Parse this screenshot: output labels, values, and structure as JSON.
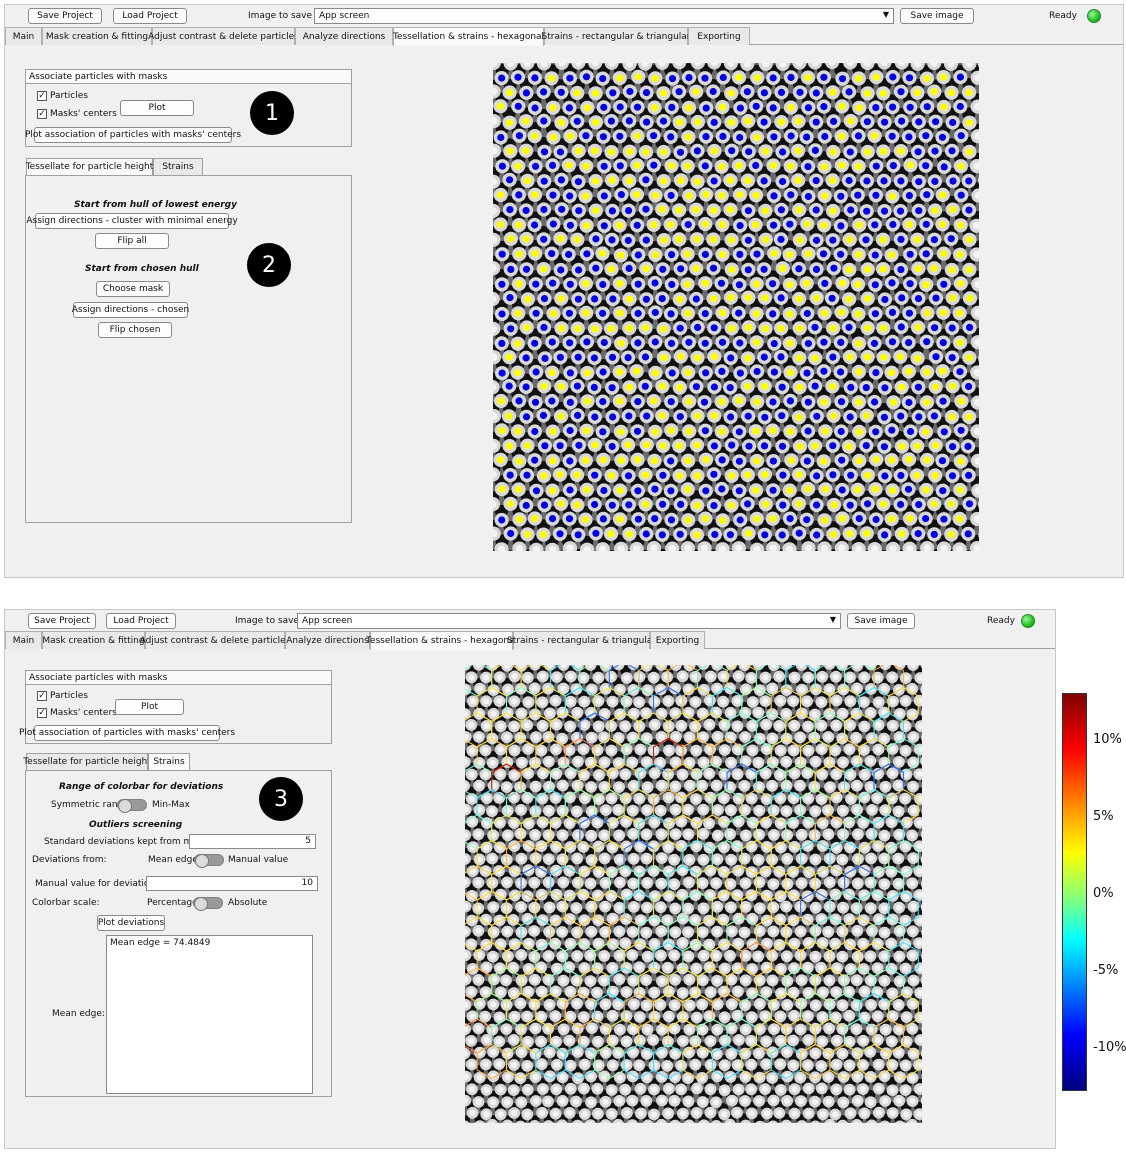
{
  "top": {
    "save_project": "Save Project",
    "load_project": "Load Project",
    "image_to_save_label": "Image to save",
    "image_to_save_value": "App screen",
    "save_image": "Save image",
    "status": "Ready",
    "tabs": [
      "Main",
      "Mask creation & fitting",
      "Adjust contrast & delete particles",
      "Analyze directions",
      "Tessellation & strains - hexagonal",
      "Strains - rectangular & triangular",
      "Exporting"
    ],
    "active_tab": "Tessellation & strains - hexagonal",
    "associate": {
      "title": "Associate particles with masks",
      "particles": "Particles",
      "masks_centers": "Masks' centers",
      "plot": "Plot",
      "plot_association": "Plot association of particles with masks' centers"
    },
    "subtabs": [
      "Tessellate for particle height",
      "Strains"
    ],
    "active_subtab": "Tessellate for particle height",
    "hull_lowest_heading": "Start from hull of lowest energy",
    "assign_min_energy": "Assign directions - cluster with minimal energy",
    "flip_all": "Flip all",
    "chosen_hull_heading": "Start from chosen hull",
    "choose_mask": "Choose mask",
    "assign_chosen": "Assign directions - chosen",
    "flip_chosen": "Flip chosen",
    "badge1": "1",
    "badge2": "2"
  },
  "bottom": {
    "save_project": "Save Project",
    "load_project": "Load Project",
    "image_to_save_label": "Image to save",
    "image_to_save_value": "App screen",
    "save_image": "Save image",
    "status": "Ready",
    "tabs": [
      "Main",
      "Mask creation & fitting",
      "Adjust contrast & delete particles",
      "Analyze directions",
      "Tessellation & strains - hexagonal",
      "Strains - rectangular & triangular",
      "Exporting"
    ],
    "active_tab": "Tessellation & strains - hexagonal",
    "associate": {
      "title": "Associate particles with masks",
      "particles": "Particles",
      "masks_centers": "Masks' centers",
      "plot": "Plot",
      "plot_association": "Plot association of particles with masks' centers"
    },
    "subtabs": [
      "Tessellate for particle height",
      "Strains"
    ],
    "active_subtab": "Strains",
    "range_heading": "Range of colorbar for deviations",
    "symmetric_range": "Symmetric range",
    "min_max": "Min-Max",
    "outliers_heading": "Outliers screening",
    "std_label": "Standard deviations kept from mean",
    "std_value": "5",
    "deviations_from": "Deviations from:",
    "mean_edge_opt": "Mean edge",
    "manual_value_opt": "Manual value",
    "manual_label": "Manual value for deviations",
    "manual_value": "10",
    "colorbar_scale": "Colorbar scale:",
    "percentage": "Percentage",
    "absolute": "Absolute",
    "plot_deviations": "Plot deviations",
    "mean_edge_label": "Mean edge:",
    "mean_edge_text": "Mean edge = 74.4849",
    "badge3": "3",
    "colorbar_ticks": [
      "10%",
      "5%",
      "0%",
      "-5%",
      "-10%"
    ]
  },
  "colors": {
    "particle_yellow": "#ffff00",
    "particle_blue": "#0000dd",
    "status_green": "#1fbf1f"
  }
}
